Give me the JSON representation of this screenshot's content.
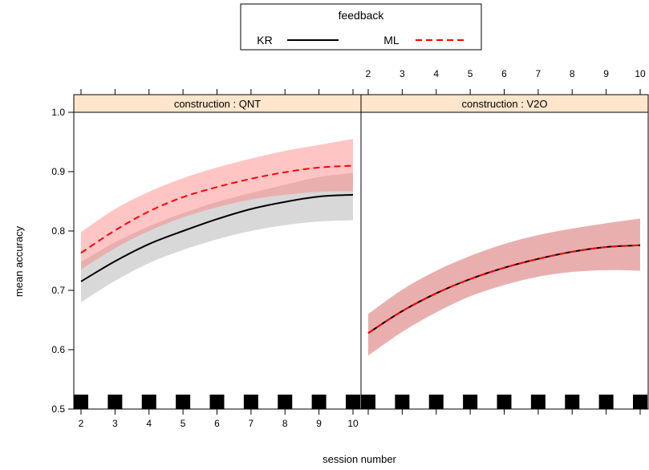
{
  "chart_data": {
    "type": "line",
    "xlabel": "session number",
    "ylabel": "mean accuracy",
    "xlim": [
      2,
      10
    ],
    "ylim": [
      0.5,
      1.0
    ],
    "x_ticks": [
      2,
      3,
      4,
      5,
      6,
      7,
      8,
      9,
      10
    ],
    "y_ticks": [
      0.5,
      0.6,
      0.7,
      0.8,
      0.9,
      1.0
    ],
    "y_tick_labels": [
      "0.5",
      "0.6",
      "0.7",
      "0.8",
      "0.9",
      "1.0"
    ],
    "x": [
      2,
      3,
      4,
      5,
      6,
      7,
      8,
      9,
      10
    ],
    "legend": {
      "title": "feedback",
      "position": "top",
      "entries": [
        {
          "name": "KR",
          "color": "#000000",
          "linestyle": "solid"
        },
        {
          "name": "ML",
          "color": "#ff0000",
          "linestyle": "dashed"
        }
      ]
    },
    "panels": [
      {
        "strip": "construction : QNT",
        "series": [
          {
            "name": "KR",
            "values": [
              0.715,
              0.749,
              0.778,
              0.8,
              0.82,
              0.837,
              0.849,
              0.858,
              0.861
            ],
            "lower": [
              0.68,
              0.716,
              0.746,
              0.768,
              0.786,
              0.8,
              0.81,
              0.816,
              0.818
            ],
            "upper": [
              0.748,
              0.781,
              0.808,
              0.83,
              0.849,
              0.864,
              0.878,
              0.891,
              0.898
            ]
          },
          {
            "name": "ML",
            "values": [
              0.763,
              0.801,
              0.833,
              0.857,
              0.874,
              0.888,
              0.899,
              0.907,
              0.91
            ],
            "lower": [
              0.735,
              0.771,
              0.8,
              0.823,
              0.84,
              0.853,
              0.861,
              0.866,
              0.867
            ],
            "upper": [
              0.798,
              0.837,
              0.866,
              0.889,
              0.907,
              0.922,
              0.935,
              0.945,
              0.955
            ]
          }
        ],
        "rug": [
          2,
          3,
          4,
          5,
          6,
          7,
          8,
          9,
          10
        ]
      },
      {
        "strip": "construction : V2O",
        "series": [
          {
            "name": "KR",
            "values": [
              0.628,
              0.665,
              0.695,
              0.719,
              0.738,
              0.753,
              0.765,
              0.773,
              0.776
            ],
            "lower": [
              0.59,
              0.63,
              0.663,
              0.69,
              0.709,
              0.723,
              0.731,
              0.734,
              0.733
            ],
            "upper": [
              0.66,
              0.701,
              0.733,
              0.758,
              0.778,
              0.793,
              0.804,
              0.813,
              0.821
            ]
          },
          {
            "name": "ML",
            "values": [
              0.628,
              0.665,
              0.695,
              0.719,
              0.738,
              0.753,
              0.765,
              0.773,
              0.776
            ],
            "lower": [
              0.59,
              0.63,
              0.663,
              0.69,
              0.709,
              0.723,
              0.731,
              0.734,
              0.733
            ],
            "upper": [
              0.66,
              0.701,
              0.733,
              0.758,
              0.778,
              0.793,
              0.804,
              0.813,
              0.821
            ]
          }
        ],
        "rug": [
          2,
          3,
          4,
          5,
          6,
          7,
          8,
          9,
          10
        ]
      }
    ],
    "colors": {
      "strip_bg": "#ffe5cc",
      "KR_band": "#bebebe",
      "ML_band": "#ff7f7f",
      "overlap_band": "#c49c9c"
    }
  }
}
